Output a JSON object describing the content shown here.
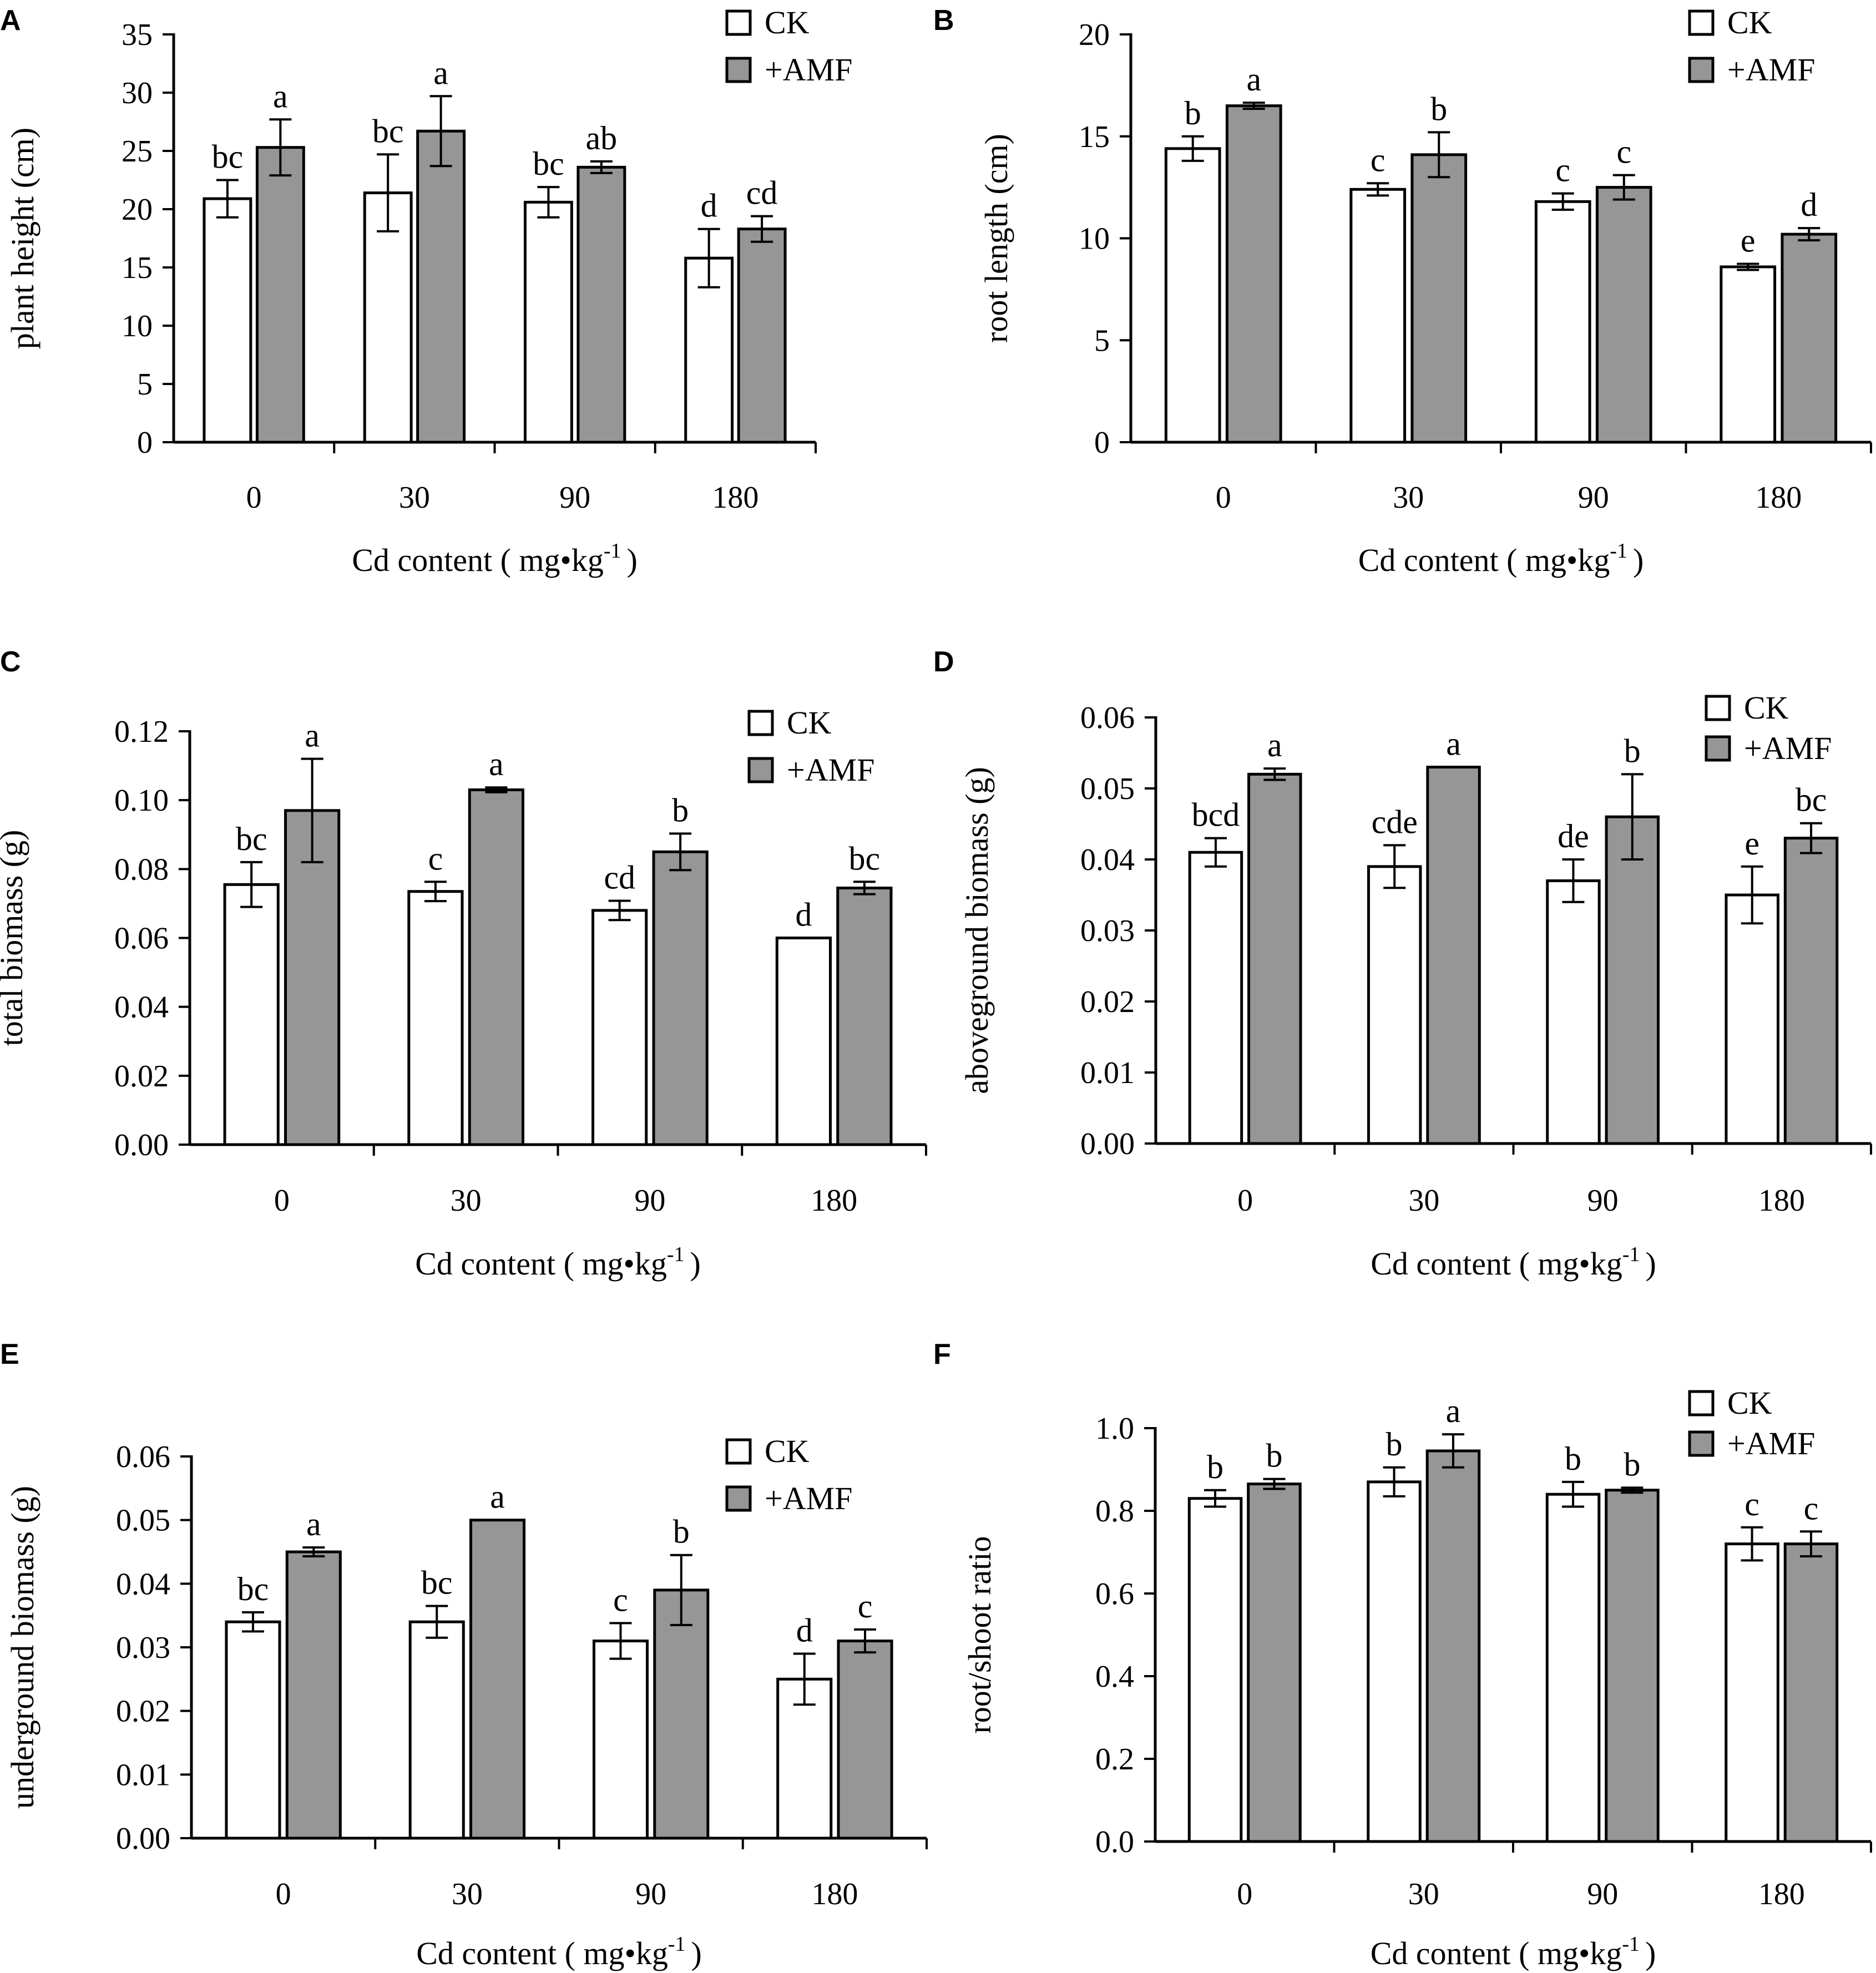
{
  "figure": {
    "xaxis_title": "Cd content ( mg•kg",
    "xaxis_unit_exponent": "-1",
    "xaxis_title_close": ")",
    "legend": [
      {
        "name": "CK",
        "label": "CK",
        "color": "#ffffff"
      },
      {
        "name": "AMF",
        "label": "+AMF",
        "color": "#969696"
      }
    ]
  },
  "chart_data": [
    {
      "panel": "A",
      "type": "bar",
      "categories": [
        "0",
        "30",
        "90",
        "180"
      ],
      "ylabel": "plant height (cm)",
      "ylim": [
        0,
        35
      ],
      "yticks": [
        "0",
        "5",
        "10",
        "15",
        "20",
        "25",
        "30",
        "35"
      ],
      "series": [
        {
          "name": "CK",
          "values": [
            20.9,
            21.4,
            20.6,
            15.8
          ],
          "errors": [
            1.6,
            3.3,
            1.3,
            2.5
          ],
          "letters": [
            "bc",
            "bc",
            "bc",
            "d"
          ]
        },
        {
          "name": "+AMF",
          "values": [
            25.3,
            26.7,
            23.6,
            18.3
          ],
          "errors": [
            2.4,
            3.0,
            0.5,
            1.1
          ],
          "letters": [
            "a",
            "a",
            "ab",
            "cd"
          ]
        }
      ]
    },
    {
      "panel": "B",
      "type": "bar",
      "categories": [
        "0",
        "30",
        "90",
        "180"
      ],
      "ylabel": "root length (cm)",
      "ylim": [
        0,
        20
      ],
      "yticks": [
        "0",
        "5",
        "10",
        "15",
        "20"
      ],
      "series": [
        {
          "name": "CK",
          "values": [
            14.4,
            12.4,
            11.8,
            8.6
          ],
          "errors": [
            0.6,
            0.3,
            0.4,
            0.15
          ],
          "letters": [
            "b",
            "c",
            "c",
            "e"
          ]
        },
        {
          "name": "+AMF",
          "values": [
            16.5,
            14.1,
            12.5,
            10.2
          ],
          "errors": [
            0.15,
            1.1,
            0.6,
            0.3
          ],
          "letters": [
            "a",
            "b",
            "c",
            "d"
          ]
        }
      ]
    },
    {
      "panel": "C",
      "type": "bar",
      "categories": [
        "0",
        "30",
        "90",
        "180"
      ],
      "ylabel": "total biomass (g)",
      "ylim": [
        0,
        0.12
      ],
      "yticks": [
        "0.00",
        "0.02",
        "0.04",
        "0.06",
        "0.08",
        "0.10",
        "0.12"
      ],
      "series": [
        {
          "name": "CK",
          "values": [
            0.0755,
            0.0735,
            0.068,
            0.06
          ],
          "errors": [
            0.0065,
            0.0028,
            0.0028,
            0
          ],
          "letters": [
            "bc",
            "c",
            "cd",
            "d"
          ]
        },
        {
          "name": "+AMF",
          "values": [
            0.097,
            0.103,
            0.085,
            0.0745
          ],
          "errors": [
            0.015,
            0.0007,
            0.0053,
            0.0018
          ],
          "letters": [
            "a",
            "a",
            "b",
            "bc"
          ]
        }
      ]
    },
    {
      "panel": "D",
      "type": "bar",
      "categories": [
        "0",
        "30",
        "90",
        "180"
      ],
      "ylabel": "aboveground  biomass (g)",
      "ylim": [
        0,
        0.06
      ],
      "yticks": [
        "0.00",
        "0.01",
        "0.02",
        "0.03",
        "0.04",
        "0.05",
        "0.06"
      ],
      "series": [
        {
          "name": "CK",
          "values": [
            0.041,
            0.039,
            0.037,
            0.035
          ],
          "errors": [
            0.002,
            0.003,
            0.003,
            0.004
          ],
          "letters": [
            "bcd",
            "cde",
            "de",
            "e"
          ]
        },
        {
          "name": "+AMF",
          "values": [
            0.052,
            0.053,
            0.046,
            0.043
          ],
          "errors": [
            0.0008,
            0,
            0.006,
            0.0021
          ],
          "letters": [
            "a",
            "a",
            "b",
            "bc"
          ]
        }
      ]
    },
    {
      "panel": "E",
      "type": "bar",
      "categories": [
        "0",
        "30",
        "90",
        "180"
      ],
      "ylabel": "underground biomass (g)",
      "ylim": [
        0,
        0.06
      ],
      "yticks": [
        "0.00",
        "0.01",
        "0.02",
        "0.03",
        "0.04",
        "0.05",
        "0.06"
      ],
      "series": [
        {
          "name": "CK",
          "values": [
            0.034,
            0.034,
            0.031,
            0.025
          ],
          "errors": [
            0.0015,
            0.0025,
            0.0028,
            0.004
          ],
          "letters": [
            "bc",
            "bc",
            "c",
            "d"
          ]
        },
        {
          "name": "+AMF",
          "values": [
            0.045,
            0.05,
            0.039,
            0.031
          ],
          "errors": [
            0.0007,
            0,
            0.0055,
            0.0018
          ],
          "letters": [
            "a",
            "a",
            "b",
            "c"
          ]
        }
      ]
    },
    {
      "panel": "F",
      "type": "bar",
      "categories": [
        "0",
        "30",
        "90",
        "180"
      ],
      "ylabel": "root/shoot ratio",
      "ylim": [
        0,
        1.0
      ],
      "yticks": [
        "0.0",
        "0.2",
        "0.4",
        "0.6",
        "0.8",
        "1.0"
      ],
      "series": [
        {
          "name": "CK",
          "values": [
            0.83,
            0.87,
            0.84,
            0.72
          ],
          "errors": [
            0.02,
            0.035,
            0.03,
            0.04
          ],
          "letters": [
            "b",
            "b",
            "b",
            "c"
          ]
        },
        {
          "name": "+AMF",
          "values": [
            0.865,
            0.945,
            0.85,
            0.72
          ],
          "errors": [
            0.012,
            0.04,
            0.006,
            0.03
          ],
          "letters": [
            "b",
            "a",
            "b",
            "c"
          ]
        }
      ]
    }
  ]
}
